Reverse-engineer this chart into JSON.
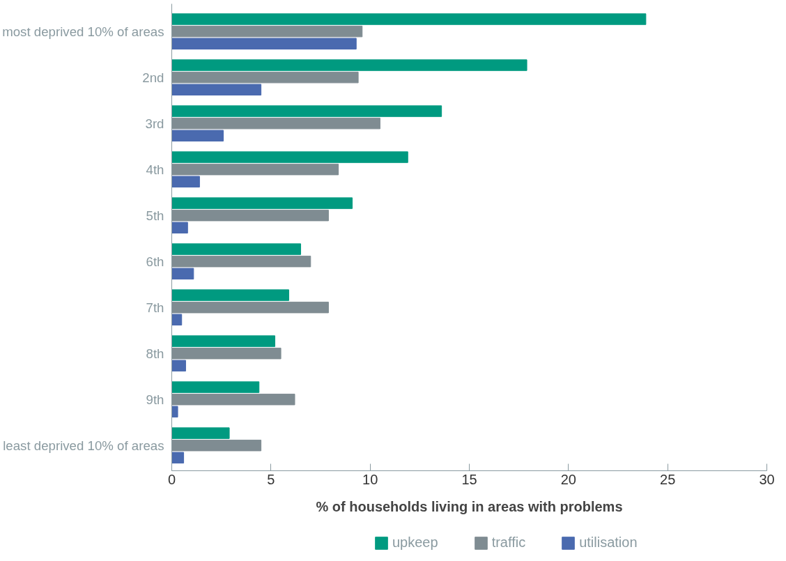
{
  "chart_data": {
    "type": "bar",
    "orientation": "horizontal",
    "xlabel": "% of households living in areas with problems",
    "categories": [
      "most deprived 10% of areas",
      "2nd",
      "3rd",
      "4th",
      "5th",
      "6th",
      "7th",
      "8th",
      "9th",
      "least deprived 10% of areas"
    ],
    "series": [
      {
        "name": "upkeep",
        "color": "#009a80",
        "values": [
          23.9,
          17.9,
          13.6,
          11.9,
          9.1,
          6.5,
          5.9,
          5.2,
          4.4,
          2.9
        ]
      },
      {
        "name": "traffic",
        "color": "#7f8c92",
        "values": [
          9.6,
          9.4,
          10.5,
          8.4,
          7.9,
          7.0,
          7.9,
          5.5,
          6.2,
          4.5
        ]
      },
      {
        "name": "utilisation",
        "color": "#4a6aaf",
        "values": [
          9.3,
          4.5,
          2.6,
          1.4,
          0.8,
          1.1,
          0.5,
          0.7,
          0.3,
          0.6
        ]
      }
    ],
    "xlim": [
      0,
      30
    ],
    "xticks": [
      0,
      5,
      10,
      15,
      20,
      25,
      30
    ],
    "grid": false,
    "legend": "bottom"
  }
}
